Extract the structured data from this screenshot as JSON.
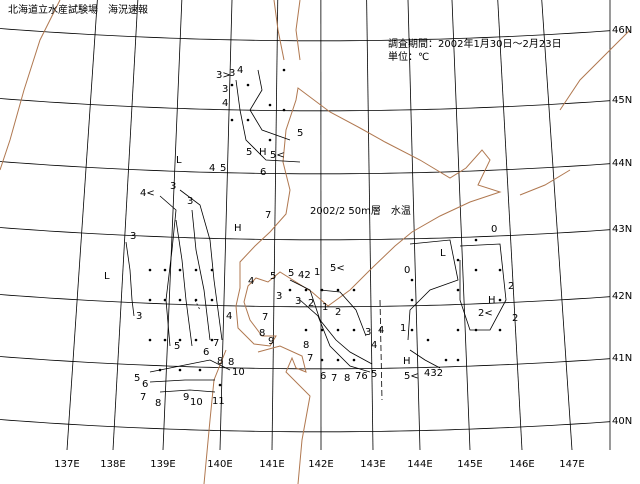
{
  "header": {
    "title": "北海道立水産試験場　海況速報",
    "period": "調査期間：2002年1月30日～2月23日",
    "unit": "単位：℃"
  },
  "map": {
    "title": "2002/2 50m層　水温",
    "longitudes": [
      "137E",
      "138E",
      "139E",
      "140E",
      "141E",
      "142E",
      "143E",
      "144E",
      "145E",
      "146E",
      "147E"
    ],
    "latitudes": [
      "46N",
      "45N",
      "44N",
      "43N",
      "42N",
      "41N",
      "40N"
    ],
    "contour_labels": [
      "3>",
      "3",
      "4",
      "3",
      "4",
      "5",
      "5",
      "H",
      "5<",
      "L",
      "3",
      "4",
      "5",
      "6",
      "4<",
      "3",
      "7",
      "H",
      "3",
      "L",
      "3",
      "4",
      "5",
      "5",
      "42",
      "1",
      "5<",
      "3",
      "3",
      "2",
      "1",
      "2",
      "7",
      "8",
      "9",
      "5",
      "6",
      "7",
      "8",
      "4",
      "8",
      "7",
      "5",
      "6",
      "7",
      "8",
      "9",
      "10",
      "11",
      "8",
      "10",
      "6",
      "7",
      "8",
      "76",
      "5",
      "4",
      "3",
      "4",
      "0",
      "0",
      "L",
      "2",
      "H",
      "2<",
      "2",
      "1",
      "H",
      "5<",
      "432"
    ]
  }
}
